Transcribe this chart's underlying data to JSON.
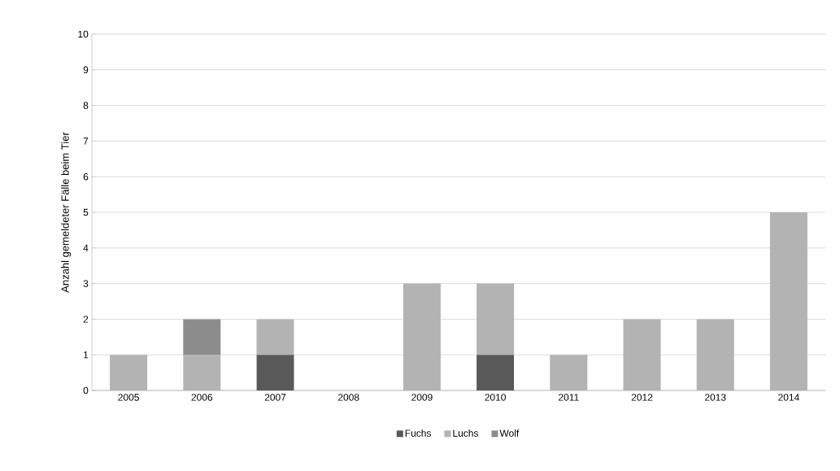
{
  "chart_data": {
    "type": "bar",
    "stacked": true,
    "ylabel": "Anzahl gemeldeter  Fälle beim Tier",
    "categories": [
      "2005",
      "2006",
      "2007",
      "2008",
      "2009",
      "2010",
      "2011",
      "2012",
      "2013",
      "2014"
    ],
    "series": [
      {
        "name": "Fuchs",
        "color": "#595959",
        "values": [
          0,
          0,
          1,
          0,
          0,
          1,
          0,
          0,
          0,
          0
        ]
      },
      {
        "name": "Luchs",
        "color": "#b3b3b3",
        "values": [
          1,
          1,
          1,
          0,
          3,
          2,
          1,
          2,
          2,
          5
        ]
      },
      {
        "name": "Wolf",
        "color": "#8c8c8c",
        "values": [
          0,
          1,
          0,
          0,
          0,
          0,
          0,
          0,
          0,
          0
        ]
      }
    ],
    "ylim": [
      0,
      10
    ],
    "yticks": [
      0,
      1,
      2,
      3,
      4,
      5,
      6,
      7,
      8,
      9,
      10
    ],
    "grid": "y",
    "legend": "bottom"
  }
}
